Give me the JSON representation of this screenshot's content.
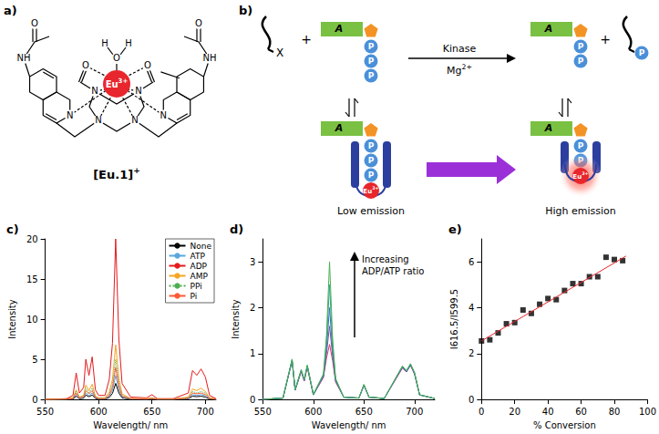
{
  "diagram": {
    "panel_a": {
      "label": "a)",
      "metal": {
        "base": "Eu",
        "sup": "3+"
      },
      "oxygen": "O",
      "hydrogen": "H",
      "nitrogen": "N",
      "amide": "NH",
      "compound": {
        "base": "[Eu.1]",
        "sup": "+"
      }
    },
    "panel_b": {
      "label": "b)",
      "substrate": "X",
      "adenosine": "A",
      "phosphate": "P",
      "plus": "+",
      "enzyme": "Kinase",
      "cofactor": {
        "base": "Mg",
        "sup": "2+"
      },
      "metal": {
        "base": "Eu",
        "sup": "3+"
      },
      "low": "Low emission",
      "high": "High emission"
    }
  },
  "chart_data": [
    {
      "type": "line",
      "title": "c)",
      "xlabel": "Wavelength/ nm",
      "ylabel": "Intensity",
      "x": [
        550,
        570,
        576,
        579,
        582,
        586,
        588,
        591,
        594,
        597,
        600,
        606,
        610,
        613,
        616,
        619,
        622,
        630,
        645,
        650,
        655,
        670,
        684,
        688,
        692,
        696,
        700,
        704,
        710
      ],
      "xlim": [
        550,
        710
      ],
      "xticks": [
        550,
        600,
        650,
        700
      ],
      "ylim": [
        0,
        20
      ],
      "yticks": [
        0,
        5,
        10,
        15,
        20
      ],
      "grid": false,
      "legend": "upper right",
      "series": [
        {
          "name": "None",
          "color": "#000000",
          "values": [
            0,
            0.02,
            0.05,
            0.4,
            0.1,
            0.15,
            0.55,
            0.35,
            0.55,
            0.12,
            0.05,
            0.05,
            0.25,
            0.75,
            2,
            0.8,
            0.2,
            0.03,
            0.02,
            0.06,
            0.01,
            0.01,
            0.08,
            0.4,
            0.35,
            0.4,
            0.3,
            0.05,
            0.01
          ]
        },
        {
          "name": "ATP",
          "color": "#5aa7dd",
          "values": [
            0,
            0.03,
            0.08,
            0.6,
            0.15,
            0.25,
            0.8,
            0.5,
            0.8,
            0.2,
            0.08,
            0.08,
            0.4,
            1.1,
            3,
            1.2,
            0.3,
            0.05,
            0.03,
            0.1,
            0.02,
            0.02,
            0.12,
            0.6,
            0.5,
            0.6,
            0.45,
            0.08,
            0.02
          ]
        },
        {
          "name": "ADP",
          "color": "#e41a1c",
          "values": [
            0,
            0.1,
            0.5,
            3.3,
            0.8,
            1.5,
            5,
            3,
            5.3,
            1.2,
            0.5,
            0.5,
            2.5,
            7,
            20,
            7.5,
            2,
            0.3,
            0.2,
            0.6,
            0.1,
            0.1,
            0.8,
            3.6,
            3,
            3.8,
            2.8,
            0.5,
            0.1
          ]
        },
        {
          "name": "AMP",
          "color": "#f5a623",
          "values": [
            0,
            0.05,
            0.2,
            1.2,
            0.3,
            0.5,
            1.8,
            1.1,
            1.9,
            0.4,
            0.2,
            0.2,
            0.9,
            2.5,
            6.8,
            2.6,
            0.7,
            0.1,
            0.1,
            0.2,
            0.05,
            0.05,
            0.3,
            1.3,
            1.1,
            1.4,
            1,
            0.2,
            0.05
          ]
        },
        {
          "name": "PPi",
          "color": "#4caf50",
          "line_style": "dotted",
          "values": [
            0,
            0.05,
            0.15,
            1,
            0.2,
            0.4,
            1.4,
            0.8,
            1.4,
            0.3,
            0.15,
            0.15,
            0.7,
            1.9,
            5,
            2,
            0.5,
            0.1,
            0.05,
            0.15,
            0.05,
            0.05,
            0.2,
            1,
            0.8,
            1,
            0.8,
            0.15,
            0.05
          ]
        },
        {
          "name": "Pi",
          "color": "#ff5a36",
          "values": [
            0,
            0.05,
            0.1,
            0.8,
            0.2,
            0.3,
            1.1,
            0.7,
            1.1,
            0.25,
            0.1,
            0.1,
            0.5,
            1.5,
            4,
            1.6,
            0.4,
            0.1,
            0.05,
            0.12,
            0.03,
            0.03,
            0.15,
            0.8,
            0.7,
            0.8,
            0.6,
            0.1,
            0.03
          ]
        }
      ]
    },
    {
      "type": "line",
      "title": "d)",
      "xlabel": "Wavelength/ nm",
      "ylabel": "Intensity",
      "annotation": [
        "Increasing",
        "ADP/ATP ratio"
      ],
      "x": [
        550,
        570,
        579,
        582,
        588,
        591,
        594,
        600,
        610,
        613,
        616,
        619,
        622,
        630,
        645,
        650,
        655,
        670,
        688,
        692,
        696,
        700,
        705,
        720
      ],
      "xlim": [
        550,
        720
      ],
      "xticks": [
        550,
        600,
        650,
        700
      ],
      "ylim": [
        0,
        3.5
      ],
      "yticks": [
        0,
        1,
        2,
        3
      ],
      "grid": false,
      "series": [
        {
          "color": "#d63b6e",
          "values": [
            0,
            0.03,
            0.84,
            0.2,
            0.6,
            0.4,
            0.7,
            0.1,
            0.48,
            0.9,
            1.2,
            0.85,
            0.38,
            0.05,
            0.03,
            0.3,
            0.05,
            0.02,
            0.68,
            0.6,
            0.74,
            0.55,
            0.1,
            0.02
          ]
        },
        {
          "color": "#7b4fa0",
          "values": [
            0,
            0.03,
            0.85,
            0.2,
            0.62,
            0.41,
            0.72,
            0.1,
            0.5,
            1,
            1.6,
            0.95,
            0.4,
            0.05,
            0.03,
            0.31,
            0.05,
            0.02,
            0.7,
            0.6,
            0.75,
            0.56,
            0.1,
            0.02
          ]
        },
        {
          "color": "#3a6fc4",
          "values": [
            0,
            0.03,
            0.86,
            0.21,
            0.63,
            0.42,
            0.73,
            0.1,
            0.52,
            1.1,
            2,
            1.05,
            0.42,
            0.05,
            0.03,
            0.31,
            0.05,
            0.02,
            0.71,
            0.61,
            0.76,
            0.57,
            0.1,
            0.02
          ]
        },
        {
          "color": "#2aa198",
          "values": [
            0,
            0.03,
            0.87,
            0.21,
            0.64,
            0.43,
            0.74,
            0.11,
            0.54,
            1.25,
            2.5,
            1.2,
            0.44,
            0.05,
            0.03,
            0.32,
            0.05,
            0.02,
            0.72,
            0.62,
            0.77,
            0.58,
            0.1,
            0.02
          ]
        },
        {
          "color": "#4caf50",
          "values": [
            0,
            0.03,
            0.88,
            0.22,
            0.65,
            0.44,
            0.75,
            0.11,
            0.56,
            1.4,
            3,
            1.35,
            0.46,
            0.05,
            0.03,
            0.33,
            0.05,
            0.02,
            0.73,
            0.63,
            0.78,
            0.59,
            0.1,
            0.02
          ]
        }
      ]
    },
    {
      "type": "scatter",
      "title": "e)",
      "xlabel": "% Conversion",
      "ylabel": "I616.5/I599.5",
      "xlim": [
        0,
        100
      ],
      "xticks": [
        0,
        20,
        40,
        60,
        80,
        100
      ],
      "ylim": [
        0,
        7
      ],
      "yticks": [
        0,
        2,
        4,
        6
      ],
      "grid": false,
      "series": [
        {
          "type": "scatter",
          "marker": "square",
          "color": "#000000",
          "x": [
            0,
            5,
            10,
            15,
            20,
            25,
            30,
            35,
            40,
            45,
            50,
            55,
            60,
            65,
            70,
            75,
            80,
            85
          ],
          "values": [
            2.55,
            2.6,
            2.9,
            3.3,
            3.35,
            3.9,
            3.75,
            4.15,
            4.4,
            4.35,
            4.75,
            5.05,
            5.05,
            5.35,
            5.35,
            6.2,
            6.1,
            6.05
          ]
        },
        {
          "type": "line",
          "color": "#e8262d",
          "x": [
            0,
            87
          ],
          "values": [
            2.55,
            6.25
          ]
        }
      ]
    }
  ]
}
